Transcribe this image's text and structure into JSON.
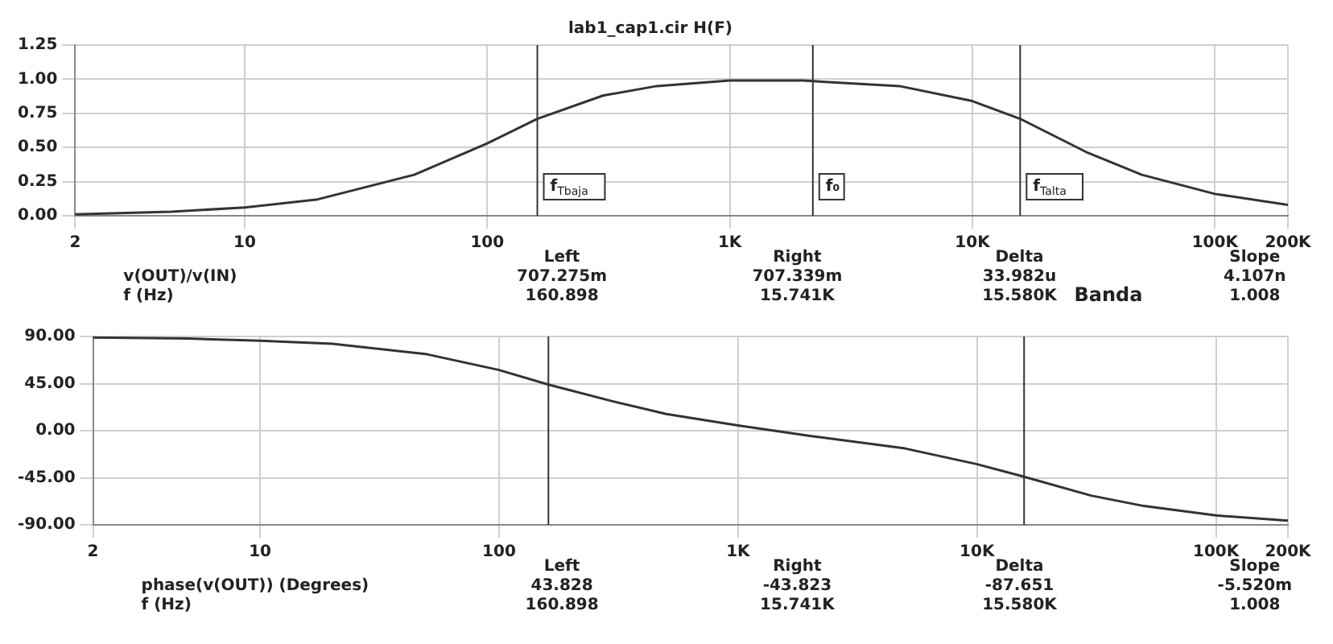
{
  "chart_data": [
    {
      "type": "line",
      "title": "lab1_cap1.cir H(F)",
      "x": [
        2,
        5,
        10,
        20,
        50,
        100,
        160.898,
        300,
        500,
        1000,
        2000,
        5000,
        10000,
        15741,
        30000,
        50000,
        100000,
        200000
      ],
      "series": [
        {
          "color": "#333333",
          "values": [
            0.01,
            0.03,
            0.06,
            0.12,
            0.3,
            0.53,
            0.71,
            0.88,
            0.95,
            0.99,
            0.99,
            0.95,
            0.84,
            0.71,
            0.46,
            0.3,
            0.16,
            0.08
          ]
        }
      ],
      "xlim": [
        2,
        200000
      ],
      "xticks": [
        2,
        10,
        100,
        {
          "value": 1000,
          "label": "1K"
        },
        {
          "value": 10000,
          "label": "10K"
        },
        {
          "value": 100000,
          "label": "100K"
        },
        {
          "value": 200000,
          "label": "200K"
        }
      ],
      "ylim": [
        0,
        1.25
      ],
      "yticks": [
        {
          "value": 0,
          "label": "0.00"
        },
        {
          "value": 0.25,
          "label": "0.25"
        },
        {
          "value": 0.5,
          "label": "0.50"
        },
        {
          "value": 0.75,
          "label": "0.75"
        },
        {
          "value": 1,
          "label": "1.00"
        },
        {
          "value": 1.25,
          "label": "1.25"
        }
      ],
      "log": "x",
      "grid": true,
      "ref_lines": [
        {
          "axis": "x",
          "value": 160.898,
          "label": "f$_{Tbaja}$"
        },
        {
          "axis": "x",
          "value": 2200,
          "label": "f₀"
        },
        {
          "axis": "x",
          "value": 15741,
          "label": "f$_{Talta}$"
        }
      ],
      "annotations": [
        "Left",
        "Right",
        "Delta",
        "Slope",
        "v(OUT)/v(IN)",
        "707.275m",
        "707.339m",
        "33.982u",
        "4.107n",
        "f (Hz)",
        "160.898",
        "15.741K",
        "15.580K",
        "1.008",
        "Banda"
      ]
    },
    {
      "type": "line",
      "x": [
        2,
        5,
        10,
        20,
        50,
        100,
        160.898,
        300,
        500,
        1000,
        2000,
        5000,
        10000,
        15741,
        30000,
        50000,
        100000,
        200000
      ],
      "series": [
        {
          "color": "#333333",
          "values": [
            89,
            88,
            86,
            83,
            73,
            58,
            44,
            28,
            16,
            5,
            -5,
            -17,
            -32,
            -44,
            -62,
            -72,
            -81,
            -86
          ]
        }
      ],
      "xlim": [
        2,
        200000
      ],
      "xticks": [
        2,
        10,
        100,
        {
          "value": 1000,
          "label": "1K"
        },
        {
          "value": 10000,
          "label": "10K"
        },
        {
          "value": 100000,
          "label": "100K"
        },
        {
          "value": 200000,
          "label": "200K"
        }
      ],
      "ylim": [
        -90,
        90
      ],
      "yticks": [
        {
          "value": -90,
          "label": "-90.00"
        },
        {
          "value": -45,
          "label": "-45.00"
        },
        {
          "value": 0,
          "label": "0.00"
        },
        {
          "value": 45,
          "label": "45.00"
        },
        {
          "value": 90,
          "label": "90.00"
        }
      ],
      "log": "x",
      "grid": true,
      "ref_lines": [
        {
          "axis": "x",
          "value": 160.898
        },
        {
          "axis": "x",
          "value": 15741
        }
      ],
      "annotations": [
        "Left",
        "Right",
        "Delta",
        "Slope",
        "phase(v(OUT)) (Degrees)",
        "43.828",
        "-43.823",
        "-87.651",
        "-5.520m",
        "f (Hz)",
        "160.898",
        "15.741K",
        "15.580K",
        "1.008"
      ]
    }
  ]
}
